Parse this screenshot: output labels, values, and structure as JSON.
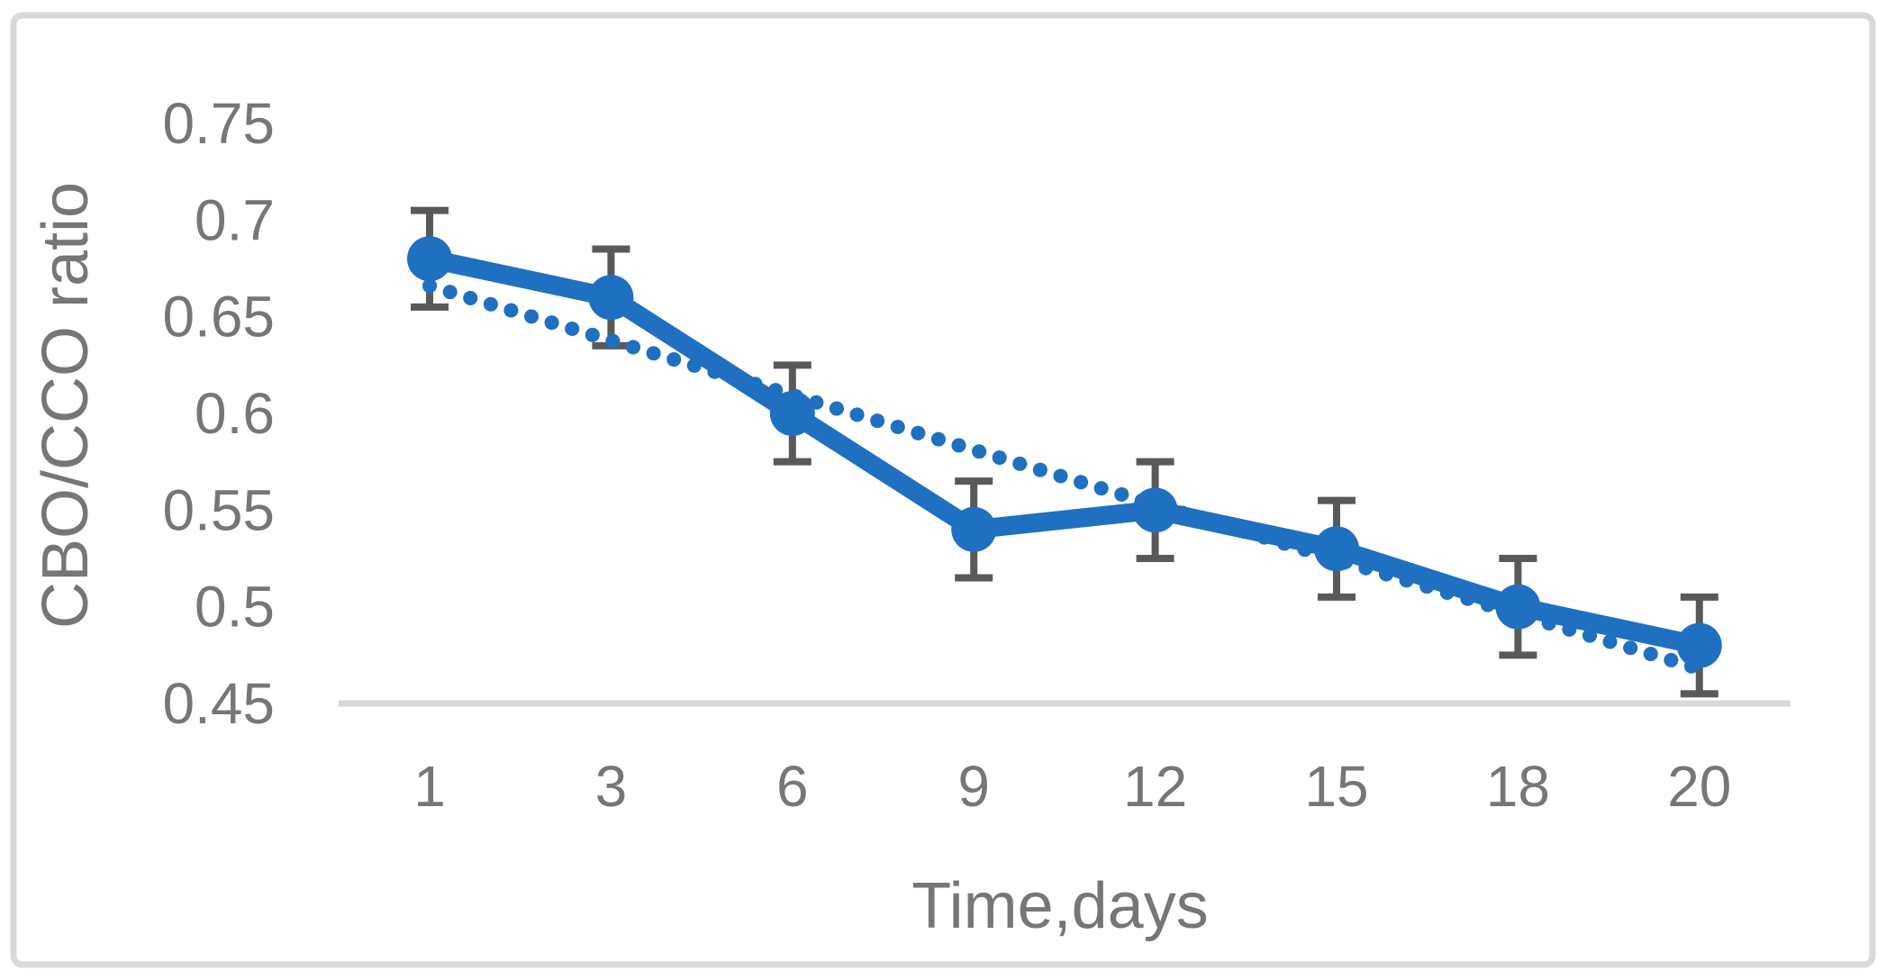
{
  "chart_data": {
    "type": "line",
    "title": "",
    "xlabel": "Time,days",
    "ylabel": "CBO/CCO ratio",
    "categories": [
      "1",
      "3",
      "6",
      "9",
      "12",
      "15",
      "18",
      "20"
    ],
    "series": [
      {
        "name": "CBO/CCO ratio measured",
        "style": "solid-with-markers",
        "marker": "circle",
        "values": [
          0.68,
          0.66,
          0.6,
          0.54,
          0.55,
          0.53,
          0.5,
          0.48
        ],
        "error_bar_plus_minus": 0.025
      },
      {
        "name": "linear trendline",
        "style": "dotted",
        "trend_start_value": 0.666,
        "trend_end_value": 0.468
      }
    ],
    "y_ticks": [
      {
        "label": "0.75",
        "value": 0.75
      },
      {
        "label": "0.7",
        "value": 0.7
      },
      {
        "label": "0.65",
        "value": 0.65
      },
      {
        "label": "0.6",
        "value": 0.6
      },
      {
        "label": "0.55",
        "value": 0.55
      },
      {
        "label": "0.5",
        "value": 0.5
      },
      {
        "label": "0.45",
        "value": 0.45
      }
    ],
    "ylim": [
      0.45,
      0.78
    ],
    "grid": false,
    "legend_position": "none",
    "colors": {
      "series": "#1f70c1",
      "error_bar": "#595959",
      "axis_line": "#d9d9d9",
      "border": "#d9d9d9",
      "text": "#767676"
    }
  }
}
